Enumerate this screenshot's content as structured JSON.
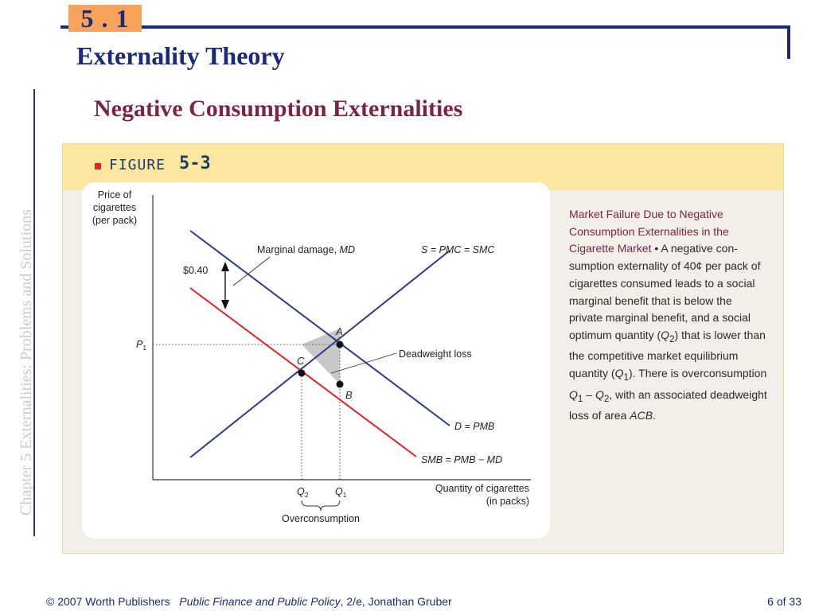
{
  "header": {
    "section_number": "5 . 1",
    "deck_title": "Externality Theory",
    "side_caption": "Chapter 5 Externalities: Problems and Solutions"
  },
  "slide": {
    "subtitle": "Negative Consumption Externalities"
  },
  "figure": {
    "label_word": "FIGURE",
    "label_number": "5-3",
    "caption": {
      "lead": "Market Failure Due to Negative Consumption Externalities in the Cigarette Market",
      "bullet": "•",
      "body_1": "A negative con-sumption externality of 40¢ per pack of cigarettes consumed leads to a social marginal benefit that is below the private marginal benefit, and a social optimum quantity (",
      "q2_sym": "Q",
      "q2_sub": "2",
      "body_2": ") that is lower than the competitive market equilibrium quantity (",
      "q1_sym": "Q",
      "q1_sub": "1",
      "body_3": "). There is overconsumption ",
      "diff_a": "Q",
      "diff_a_sub": "1",
      "diff_op": " – ",
      "diff_b": "Q",
      "diff_b_sub": "2",
      "body_4": ", with an associated deadweight loss of area ",
      "area": "ACB",
      "body_5": "."
    },
    "labels": {
      "y_axis": [
        "Price of",
        "cigarettes",
        "(per pack)"
      ],
      "x_axis": [
        "Quantity of cigarettes",
        "(in packs)"
      ],
      "marginal_damage": "Marginal damage,",
      "marginal_damage_sym": "MD",
      "md_amount": "$0.40",
      "supply": "S = PMC = SMC",
      "demand": "D = PMB",
      "smb": "SMB = PMB − MD",
      "deadweight_loss": "Deadweight loss",
      "p1": "P",
      "p1_sub": "1",
      "q1": "Q",
      "q1_sub": "1",
      "q2": "Q",
      "q2_sub": "2",
      "overconsumption": "Overconsumption",
      "point_a": "A",
      "point_b": "B",
      "point_c": "C"
    }
  },
  "footer": {
    "copyright": "© 2007 Worth Publishers",
    "book_title": "Public Finance and Public Policy",
    "edition_author": ", 2/e, Jonathan Gruber",
    "page": "6 of 33"
  },
  "colors": {
    "brand_navy": "#1b2a78",
    "accent_orange": "#f7a35c",
    "subtitle_maroon": "#7b2446",
    "pmb_line": "#2e3a8c",
    "smb_line": "#e8202a",
    "panel_header": "#fbe7a0"
  }
}
